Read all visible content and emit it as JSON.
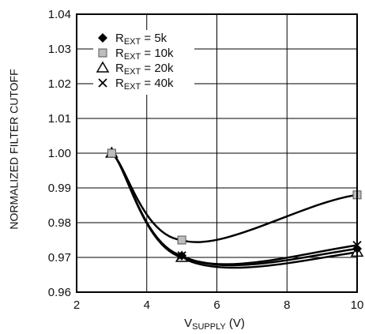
{
  "chart_data": {
    "type": "line",
    "xlabel": {
      "main": "V",
      "sub": "SUPPLY",
      "unit": " (V)"
    },
    "ylabel": "NORMALIZED FILTER CUTOFF",
    "xlim": [
      2,
      10
    ],
    "ylim": [
      0.96,
      1.04
    ],
    "xticks": [
      "2",
      "4",
      "6",
      "8",
      "10"
    ],
    "yticks": [
      "0.96",
      "0.97",
      "0.98",
      "0.99",
      "1.00",
      "1.01",
      "1.02",
      "1.03",
      "1.04"
    ],
    "grid": true,
    "legend_position": "top-left",
    "x": [
      3,
      5,
      10
    ],
    "series": [
      {
        "name": {
          "main": "R",
          "sub": "EXT",
          "rest": " = 5k"
        },
        "marker": "filled-diamond",
        "values": [
          1.0,
          0.9705,
          0.9725
        ]
      },
      {
        "name": {
          "main": "R",
          "sub": "EXT",
          "rest": " = 10k"
        },
        "marker": "gray-square",
        "values": [
          1.0,
          0.975,
          0.988
        ]
      },
      {
        "name": {
          "main": "R",
          "sub": "EXT",
          "rest": " = 20k"
        },
        "marker": "open-triangle",
        "values": [
          1.0,
          0.97,
          0.9715
        ]
      },
      {
        "name": {
          "main": "R",
          "sub": "EXT",
          "rest": " = 40k"
        },
        "marker": "x",
        "values": [
          1.0,
          0.9705,
          0.9735
        ]
      }
    ],
    "colors": {
      "line": "#000000",
      "grid": "#000000",
      "square_fill": "#bdbdbd"
    }
  }
}
